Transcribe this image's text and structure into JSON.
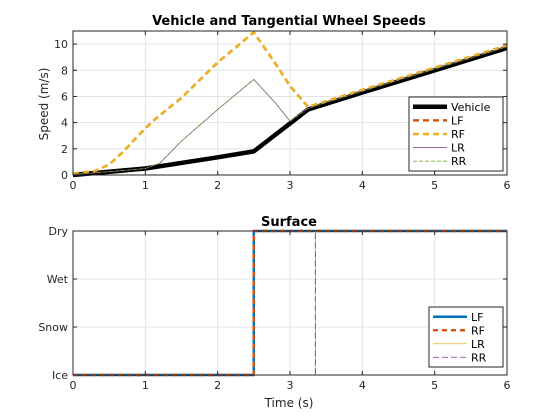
{
  "chart_data": [
    {
      "type": "line",
      "title": "Vehicle and Tangential Wheel Speeds",
      "xlabel": "",
      "ylabel": "Speed (m/s)",
      "xlim": [
        0,
        6
      ],
      "ylim": [
        0,
        11
      ],
      "xticks": [
        0,
        1,
        2,
        3,
        4,
        5,
        6
      ],
      "yticks": [
        0,
        2,
        4,
        6,
        8,
        10
      ],
      "grid": true,
      "legend": "bottom-right",
      "series": [
        {
          "name": "Vehicle",
          "color": "#000000",
          "style": "solid",
          "x": [
            0,
            1,
            2,
            2.5,
            3.25,
            4,
            5,
            6
          ],
          "y": [
            0,
            0.5,
            1.35,
            1.8,
            5.0,
            6.3,
            8.0,
            9.7
          ]
        },
        {
          "name": "LF",
          "color": "#d95319",
          "style": "solid",
          "x": [
            0,
            0.3,
            0.5,
            0.7,
            0.9,
            1.1,
            1.3,
            1.5,
            2.0,
            2.5,
            2.8,
            3.0,
            3.25,
            4,
            5,
            6
          ],
          "y": [
            0.1,
            0.3,
            0.8,
            1.8,
            3.0,
            4.1,
            5.0,
            5.9,
            8.6,
            10.9,
            8.5,
            6.8,
            5.2,
            6.5,
            8.2,
            9.9
          ]
        },
        {
          "name": "RF",
          "color": "#edb120",
          "style": "dashed",
          "x": [
            0,
            0.3,
            0.5,
            0.7,
            0.9,
            1.1,
            1.3,
            1.5,
            2.0,
            2.5,
            2.8,
            3.0,
            3.25,
            4,
            5,
            6
          ],
          "y": [
            0.1,
            0.3,
            0.8,
            1.8,
            3.0,
            4.1,
            5.0,
            5.9,
            8.6,
            10.9,
            8.5,
            6.8,
            5.2,
            6.5,
            8.2,
            9.9
          ]
        },
        {
          "name": "LR",
          "color": "#7e2f8e",
          "style": "solid",
          "x": [
            0,
            0.5,
            1.0,
            1.2,
            1.5,
            2.0,
            2.5,
            2.8,
            3.0,
            3.25,
            4,
            5,
            6
          ],
          "y": [
            0.05,
            0.25,
            0.5,
            0.9,
            2.6,
            5.0,
            7.3,
            5.5,
            4.1,
            5.1,
            6.4,
            8.1,
            9.8
          ]
        },
        {
          "name": "RR",
          "color": "#77ac30",
          "style": "dashed",
          "x": [
            0,
            0.5,
            1.0,
            1.2,
            1.5,
            2.0,
            2.5,
            2.8,
            3.0,
            3.25,
            4,
            5,
            6
          ],
          "y": [
            0.05,
            0.25,
            0.5,
            0.9,
            2.6,
            5.0,
            7.3,
            5.5,
            4.1,
            5.1,
            6.4,
            8.1,
            9.8
          ]
        }
      ]
    },
    {
      "type": "line",
      "title": "Surface",
      "xlabel": "Time (s)",
      "ylabel": "",
      "xlim": [
        0,
        6
      ],
      "ylim": [
        0,
        3
      ],
      "xticks": [
        0,
        1,
        2,
        3,
        4,
        5,
        6
      ],
      "ycategories": [
        "Ice",
        "Snow",
        "Wet",
        "Dry"
      ],
      "grid": true,
      "legend": "bottom-right",
      "series": [
        {
          "name": "LF",
          "color": "#0072bd",
          "style": "solid",
          "x": [
            0,
            2.5,
            2.5,
            6
          ],
          "y": [
            0,
            0,
            3,
            3
          ]
        },
        {
          "name": "RF",
          "color": "#d95319",
          "style": "dashed",
          "x": [
            0,
            2.5,
            2.5,
            6
          ],
          "y": [
            0,
            0,
            3,
            3
          ]
        },
        {
          "name": "LR",
          "color": "#edb120",
          "style": "solid",
          "x": [
            0,
            3.35,
            3.35,
            6
          ],
          "y": [
            0,
            0,
            3,
            3
          ]
        },
        {
          "name": "RR",
          "color": "#7e2f8e",
          "style": "dashed",
          "x": [
            0,
            3.35,
            3.35,
            6
          ],
          "y": [
            0,
            0,
            3,
            3
          ]
        }
      ]
    }
  ]
}
